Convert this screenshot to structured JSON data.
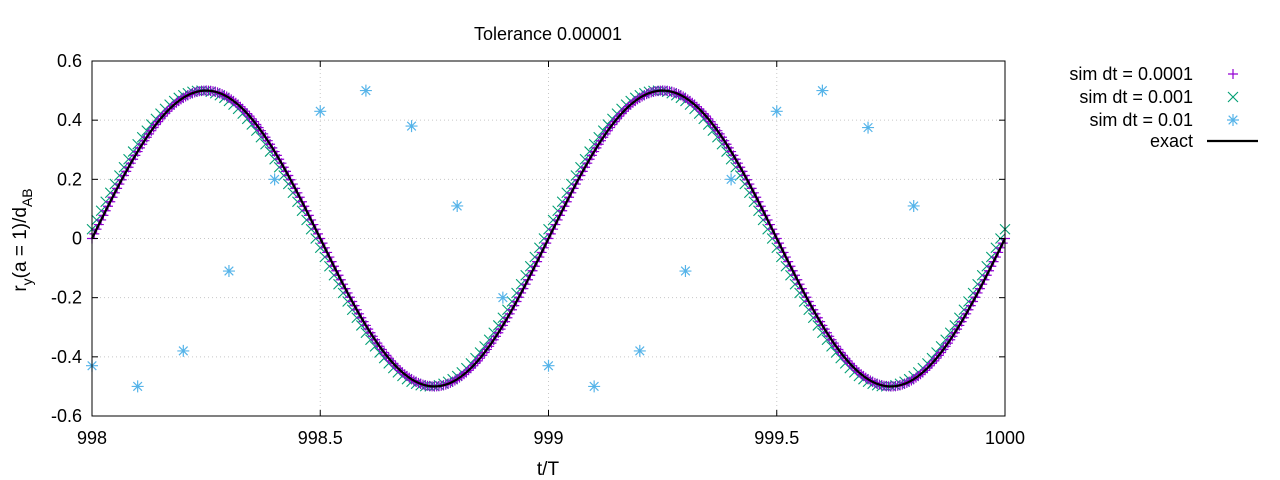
{
  "chart_data": {
    "type": "scatter",
    "title": "Tolerance 0.00001",
    "xlabel": "t/T",
    "ylabel": {
      "main": "r",
      "sub1": "y",
      "mid": "(a = 1)/d",
      "sub2": "AB"
    },
    "xlim": [
      998,
      1000
    ],
    "ylim": [
      -0.6,
      0.6
    ],
    "x_ticks": [
      998,
      998.5,
      999,
      999.5,
      1000
    ],
    "x_tick_labels": [
      "998",
      "998.5",
      "999",
      "999.5",
      "1000"
    ],
    "y_ticks": [
      -0.6,
      -0.4,
      -0.2,
      0,
      0.2,
      0.4,
      0.6
    ],
    "y_tick_labels": [
      "-0.6",
      "-0.4",
      "-0.2",
      "0",
      "0.2",
      "0.4",
      "0.6"
    ],
    "grid": true,
    "legend_position": "outside-top-right",
    "series": [
      {
        "name": "sim dt = 0.0001",
        "marker": "plus",
        "color": "#9400d3",
        "amplitude": 0.5,
        "phase_lag": 0,
        "x_start": 998,
        "x_end": 1000,
        "x_step": 0.005
      },
      {
        "name": "sim dt = 0.001",
        "marker": "cross",
        "color": "#009e73",
        "amplitude": 0.5,
        "phase_lag": -0.01,
        "x_start": 998,
        "x_end": 1000,
        "x_step": 0.01
      },
      {
        "name": "sim dt = 0.01",
        "marker": "star",
        "color": "#56b4e9",
        "x": [
          998.0,
          998.1,
          998.2,
          998.3,
          998.4,
          998.5,
          998.6,
          998.7,
          998.8,
          998.9,
          999.0,
          999.1,
          999.2,
          999.3,
          999.4,
          999.5,
          999.6,
          999.7,
          999.8
        ],
        "y": [
          -0.43,
          -0.5,
          -0.38,
          -0.11,
          0.2,
          0.43,
          0.5,
          0.38,
          0.11,
          -0.2,
          -0.43,
          -0.5,
          -0.38,
          -0.11,
          0.2,
          0.43,
          0.5,
          0.375,
          0.11
        ]
      },
      {
        "name": "exact",
        "marker": "line",
        "color": "#000000",
        "function": "0.5*sin(2*pi*t/T)",
        "x_start": 998,
        "x_end": 1000
      }
    ]
  }
}
